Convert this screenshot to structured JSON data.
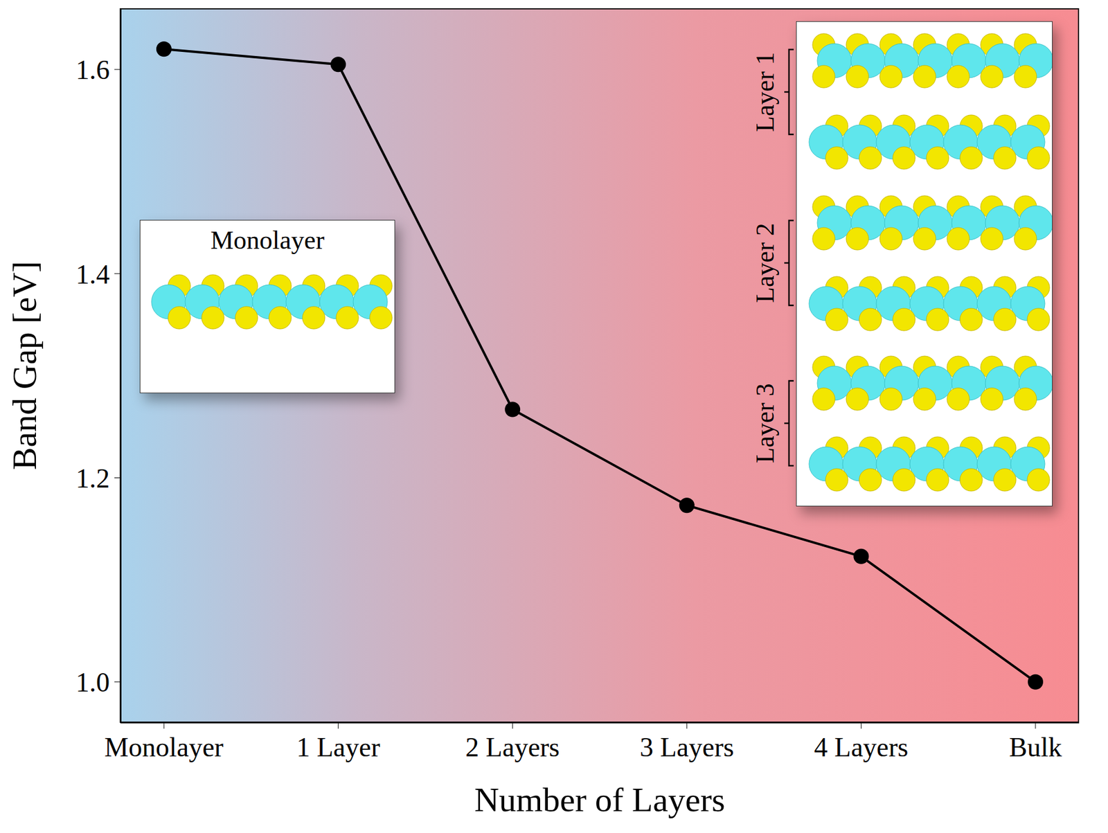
{
  "chart_data": {
    "type": "line",
    "x_label": "Number of Layers",
    "y_label": "Band Gap [eV]",
    "categories": [
      "Monolayer",
      "1 Layer",
      "2 Layers",
      "3 Layers",
      "4 Layers",
      "Bulk"
    ],
    "values": [
      1.62,
      1.605,
      1.267,
      1.173,
      1.123,
      1.0
    ],
    "color": "#000000",
    "marker": "circle",
    "ylim": [
      0.96,
      1.66
    ],
    "yticks": [
      {
        "value": 1,
        "label": "1.0"
      },
      1.2,
      1.4,
      1.6
    ],
    "grid": false,
    "insets": {
      "monolayer": {
        "title": "Monolayer"
      },
      "stack": {
        "labels": [
          "Layer 1",
          "Layer 2",
          "Layer 3"
        ]
      }
    }
  }
}
